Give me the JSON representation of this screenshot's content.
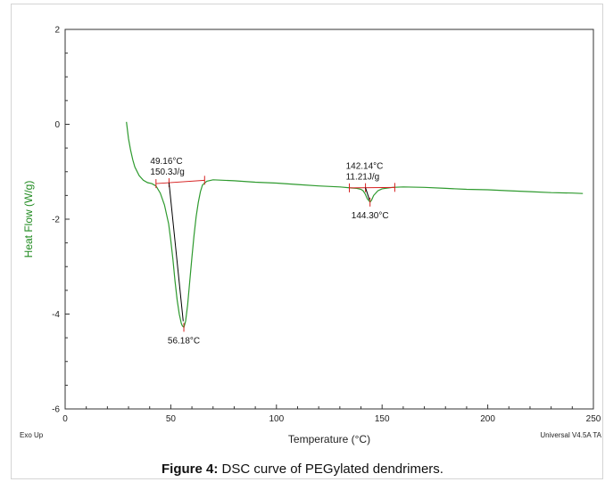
{
  "caption": {
    "label": "Figure 4:",
    "text": "DSC curve of PEGylated dendrimers."
  },
  "footer": {
    "left": "Exo Up",
    "right": "Universal V4.5A TA"
  },
  "colors": {
    "curve": "#2e9a2e",
    "ylabel": "#1f8a1f",
    "baseline": "#d62020",
    "tangent": "#000000"
  },
  "chart_data": {
    "type": "line",
    "xlabel": "Temperature (°C)",
    "ylabel": "Heat Flow (W/g)",
    "xlim": [
      0,
      250
    ],
    "ylim": [
      -6,
      2
    ],
    "xticks": [
      0,
      50,
      100,
      150,
      200,
      250
    ],
    "yticks": [
      2,
      0,
      -2,
      -4,
      -6
    ],
    "grid": false,
    "series": [
      {
        "x": [
          29,
          30,
          31,
          32,
          33,
          35,
          37,
          39,
          41,
          43,
          45,
          47,
          49,
          50,
          51,
          52,
          53,
          54,
          55,
          55.5,
          56.2,
          57,
          58,
          59,
          60,
          61,
          62,
          63,
          64,
          65,
          67,
          70,
          80,
          90,
          100,
          110,
          120,
          130,
          135,
          138,
          140,
          141,
          142,
          143,
          144.3,
          145,
          146,
          148,
          150,
          155,
          160,
          170,
          180,
          190,
          200,
          210,
          220,
          230,
          240,
          245
        ],
        "y": [
          0.05,
          -0.3,
          -0.55,
          -0.75,
          -0.9,
          -1.08,
          -1.18,
          -1.23,
          -1.25,
          -1.3,
          -1.45,
          -1.7,
          -2.1,
          -2.45,
          -2.85,
          -3.3,
          -3.7,
          -4.0,
          -4.2,
          -4.25,
          -4.28,
          -4.15,
          -3.8,
          -3.3,
          -2.8,
          -2.35,
          -1.95,
          -1.65,
          -1.42,
          -1.28,
          -1.2,
          -1.17,
          -1.19,
          -1.22,
          -1.24,
          -1.27,
          -1.3,
          -1.32,
          -1.34,
          -1.35,
          -1.37,
          -1.4,
          -1.47,
          -1.57,
          -1.64,
          -1.6,
          -1.5,
          -1.4,
          -1.36,
          -1.33,
          -1.32,
          -1.33,
          -1.35,
          -1.37,
          -1.38,
          -1.4,
          -1.42,
          -1.44,
          -1.45,
          -1.46
        ]
      }
    ],
    "peaks": [
      {
        "onset_label": "49.16°C",
        "enthalpy_label": "150.3J/g",
        "peak_label": "56.18°C",
        "onset_x": 49.16,
        "peak_x": 56.18,
        "peak_y": -4.28,
        "baseline_start": [
          43,
          -1.25
        ],
        "baseline_end": [
          66,
          -1.18
        ]
      },
      {
        "onset_label": "142.14°C",
        "enthalpy_label": "11.21J/g",
        "peak_label": "144.30°C",
        "onset_x": 142.14,
        "peak_x": 144.3,
        "peak_y": -1.64,
        "baseline_start": [
          134.5,
          -1.34
        ],
        "baseline_end": [
          156,
          -1.33
        ]
      }
    ]
  }
}
